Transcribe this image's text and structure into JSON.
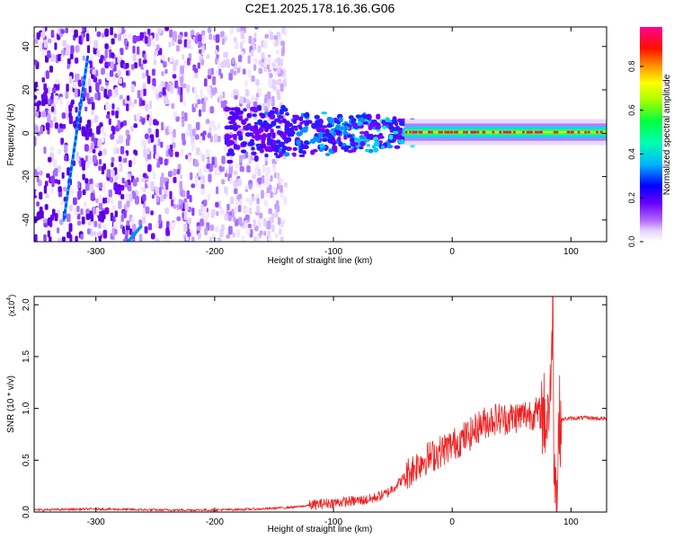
{
  "figure_title": "C2E1.2025.178.16.36.G06",
  "chart_data": [
    {
      "type": "heatmap",
      "xlabel": "Height of straight line (km)",
      "ylabel": "Frequency (Hz)",
      "xlim": [
        -352,
        130
      ],
      "ylim": [
        -50,
        49
      ],
      "xticks": [
        -300,
        -200,
        -100,
        0,
        100
      ],
      "yticks": [
        -40,
        -20,
        0,
        20,
        40
      ],
      "colorbar": {
        "label": "Normalized spectral amplitude",
        "range": [
          0,
          0.98
        ],
        "ticks": [
          "0.0",
          "0.2",
          "0.4",
          "0.6",
          "0.8"
        ],
        "colormap": [
          "#ffffff",
          "#e6d3ff",
          "#7a00ff",
          "#0000ff",
          "#00c8ff",
          "#00ff80",
          "#aaff00",
          "#ffff00",
          "#ff8000",
          "#ff0000",
          "#ff0080"
        ]
      },
      "features": {
        "noise_region_x": [
          -352,
          -140
        ],
        "scattered_region_x": [
          -190,
          -30
        ],
        "carrier_line_x": [
          -40,
          130
        ],
        "carrier_frequency": 0.5,
        "diagonal_streak": {
          "x": [
            -327,
            -307
          ],
          "y": [
            -40,
            35
          ]
        },
        "lower_streak": {
          "x": [
            -273,
            -262
          ],
          "y": [
            -50,
            -43
          ]
        }
      }
    },
    {
      "type": "line",
      "xlabel": "Height of straight line (km)",
      "ylabel": "SNR (10 * v/v)",
      "multiplier_label": "(x10",
      "multiplier_exp": "4",
      "multiplier_close": ")",
      "xlim": [
        -352,
        130
      ],
      "ylim": [
        0,
        2.08
      ],
      "xticks": [
        -300,
        -200,
        -100,
        0,
        100
      ],
      "yticks": [
        "0.0",
        "0.5",
        "1.0",
        "1.5",
        "2.0"
      ],
      "color": "#ee2222",
      "series": [
        {
          "name": "",
          "x": [
            -352,
            -300,
            -250,
            -200,
            -160,
            -130,
            -110,
            -90,
            -70,
            -55,
            -45,
            -35,
            -25,
            -15,
            -5,
            5,
            15,
            25,
            35,
            45,
            55,
            65,
            75,
            80,
            84,
            86,
            88,
            90,
            95,
            110,
            130
          ],
          "y": [
            0.02,
            0.03,
            0.02,
            0.02,
            0.03,
            0.05,
            0.08,
            0.1,
            0.12,
            0.18,
            0.28,
            0.4,
            0.5,
            0.55,
            0.62,
            0.68,
            0.75,
            0.85,
            0.9,
            0.9,
            0.92,
            0.95,
            0.95,
            0.9,
            1.4,
            0.5,
            0.15,
            0.88,
            0.9,
            0.91,
            0.9
          ]
        }
      ]
    }
  ]
}
